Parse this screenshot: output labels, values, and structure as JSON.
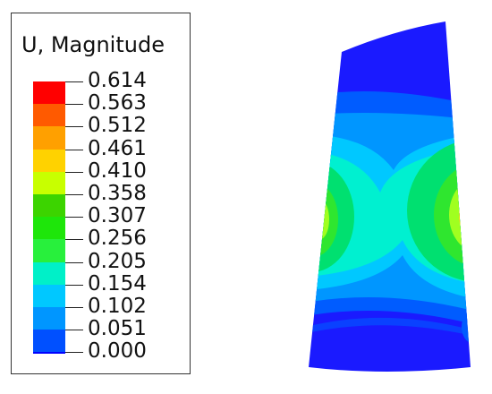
{
  "legend": {
    "title": "U, Magnitude",
    "values": [
      "0.614",
      "0.563",
      "0.512",
      "0.461",
      "0.410",
      "0.358",
      "0.307",
      "0.256",
      "0.205",
      "0.154",
      "0.102",
      "0.051",
      "0.000"
    ],
    "colors": [
      "#ff0000",
      "#ff5a00",
      "#ffa000",
      "#ffd200",
      "#c8ff00",
      "#3cd400",
      "#1ee60a",
      "#28f03c",
      "#00f0c8",
      "#00c8ff",
      "#0096ff",
      "#0050ff",
      "#0000ff"
    ]
  },
  "plot": {
    "colors": {
      "c0": "#1a1aff",
      "c1": "#005cff",
      "c2": "#0096ff",
      "c3": "#00c8ff",
      "c4": "#00f0d0",
      "c5": "#00e070",
      "c6": "#2fe62f",
      "c7": "#a0ff20",
      "c8": "#ffd000",
      "c9": "#ff8000",
      "c10": "#ff2000"
    }
  }
}
